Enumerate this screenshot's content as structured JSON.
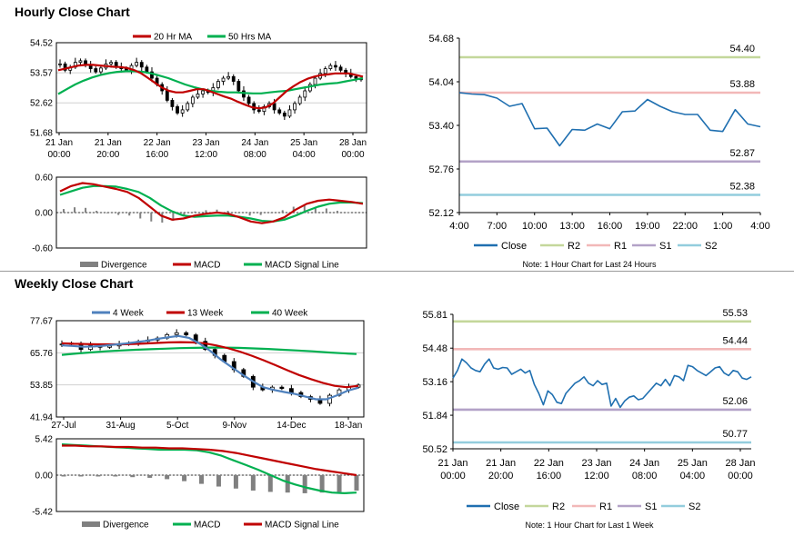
{
  "sections": {
    "hourly_title": "Hourly Close Chart",
    "weekly_title": "Weekly Close Chart"
  },
  "colors": {
    "red": "#c00000",
    "green": "#00b050",
    "blue": "#4f81bd",
    "close_blue": "#1f6fb0",
    "grey": "#808080",
    "r2": "#c4d79b",
    "r1": "#f2b8b8",
    "s1": "#b3a2c7",
    "s2": "#93cddd"
  },
  "chart_data": [
    {
      "id": "hourly_price",
      "type": "candlestick",
      "title": "",
      "legend": [
        "20 Hr MA",
        "50 Hrs MA"
      ],
      "ylim": [
        51.68,
        54.52
      ],
      "yticks": [
        "54.52",
        "53.57",
        "52.62",
        "51.68"
      ],
      "xticks": [
        [
          "21 Jan",
          "00:00"
        ],
        [
          "21 Jan",
          "20:00"
        ],
        [
          "22 Jan",
          "16:00"
        ],
        [
          "23 Jan",
          "12:00"
        ],
        [
          "24 Jan",
          "08:00"
        ],
        [
          "25 Jan",
          "04:00"
        ],
        [
          "28 Jan",
          "00:00"
        ]
      ],
      "close": [
        53.85,
        53.65,
        53.75,
        53.9,
        53.95,
        53.8,
        53.7,
        53.6,
        53.72,
        53.85,
        53.9,
        53.75,
        53.7,
        53.65,
        53.8,
        53.9,
        53.75,
        53.6,
        53.4,
        53.2,
        53.0,
        52.7,
        52.5,
        52.3,
        52.4,
        52.6,
        52.8,
        52.9,
        53.0,
        52.95,
        53.1,
        53.3,
        53.4,
        53.45,
        53.3,
        53.0,
        52.8,
        52.6,
        52.4,
        52.35,
        52.5,
        52.6,
        52.4,
        52.3,
        52.2,
        52.4,
        52.6,
        52.8,
        53.0,
        53.2,
        53.4,
        53.55,
        53.7,
        53.8,
        53.75,
        53.65,
        53.55,
        53.45,
        53.4,
        53.35
      ],
      "ma20": [
        53.65,
        53.7,
        53.75,
        53.8,
        53.82,
        53.82,
        53.8,
        53.78,
        53.76,
        53.75,
        53.72,
        53.65,
        53.55,
        53.4,
        53.25,
        53.1,
        53.0,
        52.95,
        52.95,
        53.0,
        53.05,
        53.05,
        52.98,
        52.9,
        52.82,
        52.75,
        52.65,
        52.56,
        52.48,
        52.45,
        52.48,
        52.6,
        52.8,
        53.0,
        53.15,
        53.28,
        53.38,
        53.45,
        53.5,
        53.52,
        53.55,
        53.55,
        53.55,
        53.5,
        53.45
      ],
      "ma50": [
        52.9,
        53.05,
        53.2,
        53.32,
        53.42,
        53.5,
        53.56,
        53.6,
        53.62,
        53.62,
        53.6,
        53.55,
        53.48,
        53.4,
        53.3,
        53.2,
        53.12,
        53.05,
        53.0,
        52.97,
        52.95,
        52.95,
        52.93,
        52.92,
        52.92,
        52.95,
        52.98,
        53.0,
        53.05,
        53.1,
        53.15,
        53.2,
        53.23,
        53.25,
        53.3,
        53.35,
        53.4
      ]
    },
    {
      "id": "hourly_macd",
      "type": "macd",
      "legend": [
        "Divergence",
        "MACD",
        "MACD Signal Line"
      ],
      "ylim": [
        -0.6,
        0.6
      ],
      "yticks": [
        "0.60",
        "0.00",
        "-0.60"
      ],
      "macd": [
        0.36,
        0.45,
        0.5,
        0.48,
        0.44,
        0.4,
        0.35,
        0.25,
        0.1,
        -0.05,
        -0.12,
        -0.1,
        -0.05,
        -0.02,
        0.0,
        -0.02,
        -0.08,
        -0.15,
        -0.18,
        -0.15,
        -0.08,
        0.05,
        0.15,
        0.2,
        0.22,
        0.2,
        0.18,
        0.15
      ],
      "signal": [
        0.3,
        0.36,
        0.42,
        0.45,
        0.45,
        0.44,
        0.4,
        0.35,
        0.25,
        0.12,
        0.02,
        -0.05,
        -0.07,
        -0.06,
        -0.05,
        -0.05,
        -0.07,
        -0.1,
        -0.14,
        -0.15,
        -0.12,
        -0.05,
        0.03,
        0.1,
        0.15,
        0.17,
        0.17,
        0.16
      ],
      "divergence": [
        0.06,
        0.09,
        0.08,
        0.03,
        -0.01,
        -0.04,
        -0.05,
        -0.1,
        -0.15,
        -0.17,
        -0.14,
        -0.05,
        0.02,
        0.04,
        0.05,
        0.03,
        -0.01,
        -0.05,
        -0.04,
        0.0,
        0.04,
        0.1,
        0.12,
        0.1,
        0.07,
        0.03,
        0.01,
        -0.01
      ]
    },
    {
      "id": "hourly_pivot",
      "type": "line",
      "ylim": [
        52.12,
        54.68
      ],
      "yticks": [
        "54.68",
        "54.04",
        "53.40",
        "52.76",
        "52.12"
      ],
      "xticks": [
        "4:00",
        "7:00",
        "10:00",
        "13:00",
        "16:00",
        "19:00",
        "22:00",
        "1:00",
        "4:00"
      ],
      "levels": [
        {
          "name": "R2",
          "value": 54.4,
          "label": "54.40"
        },
        {
          "name": "R1",
          "value": 53.88,
          "label": "53.88"
        },
        {
          "name": "S1",
          "value": 52.87,
          "label": "52.87"
        },
        {
          "name": "S2",
          "value": 52.38,
          "label": "52.38"
        }
      ],
      "close": [
        53.88,
        53.86,
        53.85,
        53.8,
        53.68,
        53.72,
        53.35,
        53.36,
        53.1,
        53.34,
        53.33,
        53.42,
        53.35,
        53.6,
        53.61,
        53.78,
        53.68,
        53.6,
        53.56,
        53.56,
        53.33,
        53.31,
        53.63,
        53.42,
        53.38
      ],
      "legend": [
        "Close",
        "R2",
        "R1",
        "S1",
        "S2"
      ],
      "note": "Note: 1 Hour Chart for Last 24 Hours"
    },
    {
      "id": "weekly_price",
      "type": "candlestick",
      "legend": [
        "4 Week",
        "13 Week",
        "40 Week"
      ],
      "ylim": [
        41.94,
        77.67
      ],
      "yticks": [
        "77.67",
        "65.76",
        "53.85",
        "41.94"
      ],
      "xticks": [
        "27-Jul",
        "31-Aug",
        "5-Oct",
        "9-Nov",
        "14-Dec",
        "18-Jan"
      ],
      "close": [
        69,
        69.3,
        67,
        68.5,
        67.8,
        68.3,
        68.9,
        69.4,
        70,
        70.5,
        71.2,
        72.5,
        73.2,
        72.4,
        70,
        67,
        64.8,
        62.5,
        59.5,
        57,
        53,
        52,
        53,
        52.5,
        51,
        49.5,
        48.5,
        47,
        50,
        52,
        53,
        53.8
      ],
      "ma4": [
        68.5,
        68.3,
        68.0,
        68.1,
        68.4,
        68.8,
        69.2,
        69.7,
        70.2,
        70.9,
        71.5,
        72.0,
        71.3,
        69.2,
        66.5,
        63.3,
        60.5,
        57.8,
        55.3,
        53.0,
        52.0,
        51.2,
        50.5,
        49.5,
        48.5,
        48.5,
        50.0,
        51.7,
        52.8
      ],
      "ma13": [
        69.3,
        69.1,
        69.0,
        68.9,
        68.9,
        68.9,
        69.0,
        69.2,
        69.4,
        69.6,
        69.7,
        69.6,
        69.3,
        68.5,
        67.5,
        66.2,
        64.7,
        63.0,
        61.2,
        59.3,
        57.5,
        56.0,
        54.6,
        53.5,
        53.0,
        53.5
      ],
      "ma40": [
        65.0,
        65.5,
        65.9,
        66.3,
        66.6,
        66.9,
        67.1,
        67.3,
        67.5,
        67.6,
        67.7,
        67.7,
        67.6,
        67.4,
        67.2,
        66.9,
        66.6,
        66.3,
        65.9,
        65.6,
        65.3
      ]
    },
    {
      "id": "weekly_macd",
      "type": "macd",
      "legend": [
        "Divergence",
        "MACD",
        "MACD Signal Line"
      ],
      "ylim": [
        -5.42,
        5.42
      ],
      "yticks": [
        "5.42",
        "0.00",
        "-5.42"
      ],
      "macd": [
        4.6,
        4.5,
        4.4,
        4.3,
        4.2,
        4.1,
        4.0,
        3.9,
        3.8,
        3.8,
        3.8,
        3.7,
        3.4,
        2.9,
        2.2,
        1.5,
        0.8,
        0.0,
        -0.8,
        -1.4,
        -1.9,
        -2.3,
        -2.6,
        -2.7,
        -2.6
      ],
      "signal": [
        4.4,
        4.4,
        4.3,
        4.3,
        4.2,
        4.2,
        4.1,
        4.1,
        4.0,
        4.0,
        3.9,
        3.8,
        3.6,
        3.3,
        2.9,
        2.5,
        2.1,
        1.7,
        1.3,
        0.9,
        0.6,
        0.3,
        0.0
      ],
      "divergence": [
        -0.2,
        -0.2,
        -0.2,
        -0.2,
        -0.3,
        -0.4,
        -0.6,
        -0.9,
        -1.3,
        -1.7,
        -2.0,
        -2.3,
        -2.5,
        -2.6,
        -2.7,
        -2.6,
        -2.5,
        -2.3
      ]
    },
    {
      "id": "weekly_pivot",
      "type": "line",
      "ylim": [
        50.52,
        55.81
      ],
      "yticks": [
        "55.81",
        "54.48",
        "53.16",
        "51.84",
        "50.52"
      ],
      "xticks": [
        [
          "21 Jan",
          "00:00"
        ],
        [
          "21 Jan",
          "20:00"
        ],
        [
          "22 Jan",
          "16:00"
        ],
        [
          "23 Jan",
          "12:00"
        ],
        [
          "24 Jan",
          "08:00"
        ],
        [
          "25 Jan",
          "04:00"
        ],
        [
          "28 Jan",
          "00:00"
        ]
      ],
      "levels": [
        {
          "name": "R2",
          "value": 55.53,
          "label": "55.53"
        },
        {
          "name": "R1",
          "value": 54.44,
          "label": "54.44"
        },
        {
          "name": "S1",
          "value": 52.06,
          "label": "52.06"
        },
        {
          "name": "S2",
          "value": 50.77,
          "label": "50.77"
        }
      ],
      "close": [
        53.3,
        53.6,
        54.05,
        53.9,
        53.7,
        53.6,
        53.55,
        53.85,
        54.05,
        53.7,
        53.65,
        53.72,
        53.7,
        53.45,
        53.55,
        53.65,
        53.5,
        53.6,
        53.05,
        52.7,
        52.25,
        52.8,
        52.65,
        52.35,
        52.3,
        52.7,
        52.9,
        53.1,
        53.2,
        53.35,
        53.1,
        53.0,
        53.2,
        53.05,
        53.1,
        52.2,
        52.5,
        52.15,
        52.4,
        52.55,
        52.6,
        52.45,
        52.5,
        52.7,
        52.9,
        53.1,
        53.0,
        53.25,
        53.0,
        53.4,
        53.35,
        53.2,
        53.8,
        53.75,
        53.6,
        53.5,
        53.4,
        53.55,
        53.7,
        53.75,
        53.5,
        53.4,
        53.6,
        53.55,
        53.3,
        53.25,
        53.35
      ],
      "legend": [
        "Close",
        "R2",
        "R1",
        "S1",
        "S2"
      ],
      "note": "Note: 1 Hour Chart for Last 1 Week"
    }
  ]
}
